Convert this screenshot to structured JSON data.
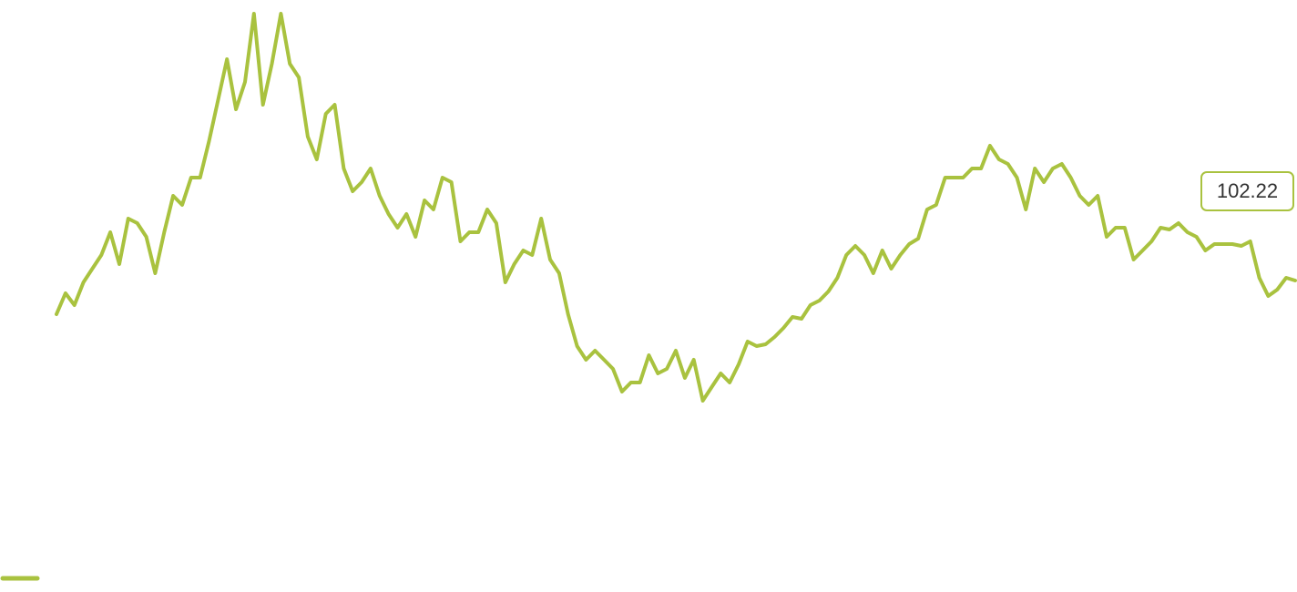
{
  "chart_data": {
    "type": "line",
    "series": [
      {
        "color": "#a9c23f",
        "values": [
          98.52,
          100.82,
          99.52,
          102.02,
          103.52,
          105.02,
          107.52,
          104.02,
          109.02,
          108.52,
          107.02,
          103.02,
          107.52,
          111.52,
          110.52,
          113.52,
          113.52,
          117.52,
          122.02,
          126.52,
          121.02,
          124.02,
          131.52,
          121.52,
          126.02,
          131.52,
          126.02,
          124.52,
          118.02,
          115.52,
          120.52,
          121.52,
          114.52,
          112.02,
          113.02,
          114.52,
          111.52,
          109.52,
          108.02,
          109.52,
          107.02,
          111.02,
          110.02,
          113.52,
          113.02,
          106.52,
          107.52,
          107.52,
          110.02,
          108.52,
          102.02,
          104.02,
          105.52,
          105.02,
          109.02,
          104.52,
          103.02,
          98.52,
          95.02,
          93.52,
          94.52,
          93.52,
          92.52,
          90.02,
          91.02,
          91.02,
          94.02,
          92.02,
          92.52,
          94.52,
          91.52,
          93.52,
          89.02,
          90.52,
          92.02,
          91.02,
          93.02,
          95.52,
          95.02,
          95.22,
          96.02,
          97.02,
          98.22,
          98.02,
          99.52,
          100.02,
          101.02,
          102.52,
          105.02,
          106.02,
          105.02,
          103.02,
          105.52,
          103.52,
          105.02,
          106.22,
          106.82,
          110.02,
          110.52,
          113.52,
          113.52,
          113.52,
          114.52,
          114.52,
          117.02,
          115.52,
          115.02,
          113.52,
          110.02,
          114.52,
          113.02,
          114.52,
          115.02,
          113.52,
          111.52,
          110.52,
          111.52,
          107.02,
          108.02,
          108.02,
          104.52,
          105.52,
          106.52,
          108.02,
          107.82,
          108.52,
          107.52,
          107.02,
          105.52,
          106.22,
          106.22,
          106.22,
          106.02,
          106.52,
          102.52,
          100.52,
          101.22,
          102.52,
          102.22
        ]
      }
    ],
    "ylim": [
      69.02,
      132.02
    ],
    "label_last": true,
    "legend": "bottom-left"
  }
}
